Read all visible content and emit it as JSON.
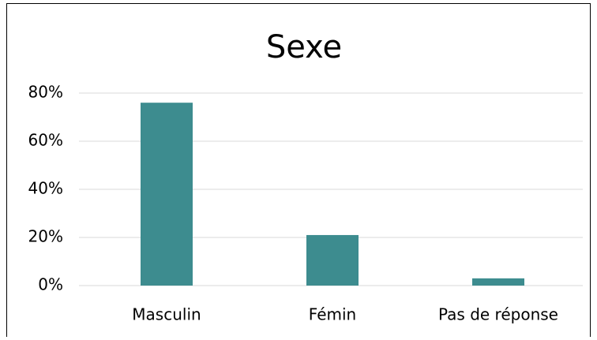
{
  "chart_data": {
    "type": "bar",
    "title": "Sexe",
    "categories": [
      "Masculin",
      "Fémin",
      "Pas de réponse"
    ],
    "values": [
      76,
      21,
      3
    ],
    "color": "#3d8c8f",
    "ylim": [
      0,
      80
    ],
    "yticks": [
      {
        "value": 0,
        "label": "0%"
      },
      {
        "value": 20,
        "label": "20%"
      },
      {
        "value": 40,
        "label": "40%"
      },
      {
        "value": 60,
        "label": "60%"
      },
      {
        "value": 80,
        "label": "80%"
      }
    ],
    "grid": true
  }
}
